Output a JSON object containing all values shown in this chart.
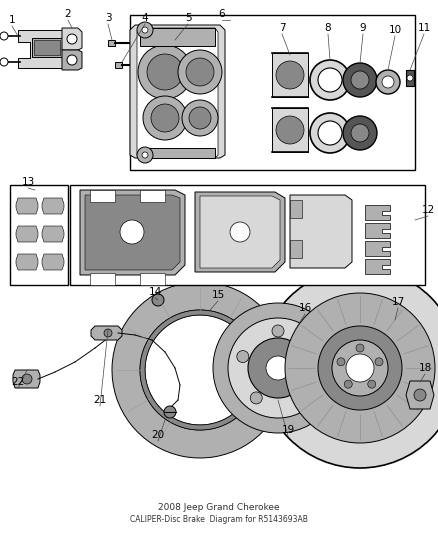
{
  "title": "CALIPER-Disc Brake",
  "subtitle": "2008 Jeep Grand Cherokee",
  "part_number": "R5143693AB",
  "background_color": "#ffffff",
  "line_color": "#000000",
  "fig_width": 4.38,
  "fig_height": 5.33,
  "dpi": 100,
  "font_size": 7.0,
  "label_fs": 7.5,
  "gray_light": "#d8d8d8",
  "gray_mid": "#b0b0b0",
  "gray_dark": "#888888",
  "gray_darker": "#555555",
  "gray_fill": "#c8c8c8"
}
